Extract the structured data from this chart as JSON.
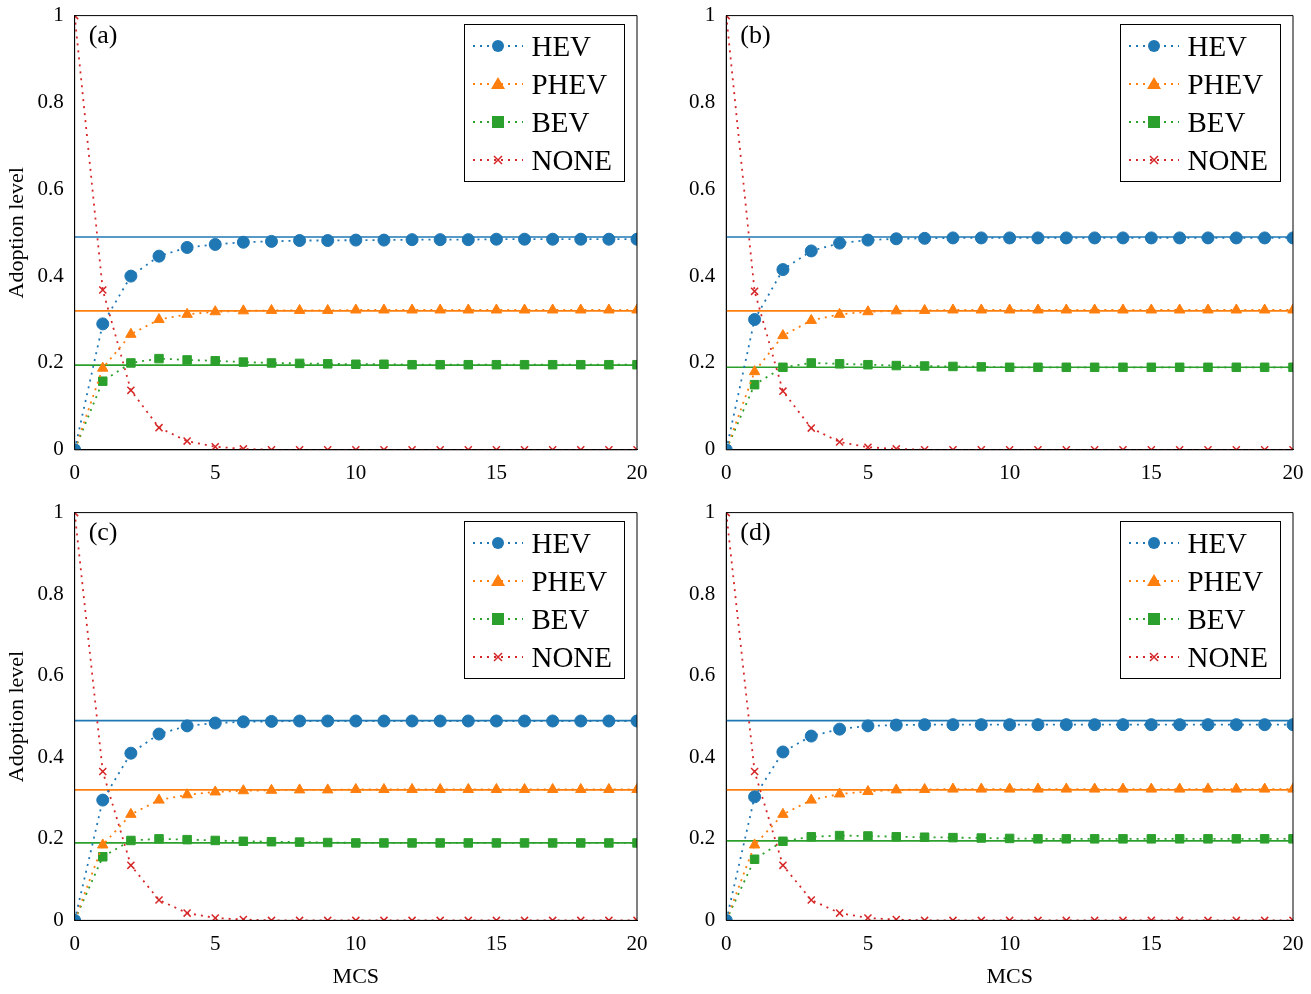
{
  "chart_data": [
    {
      "type": "line",
      "annotations": [
        "(a)"
      ],
      "ylabel": "Adoption level",
      "x": [
        0,
        1,
        2,
        3,
        4,
        5,
        6,
        7,
        8,
        9,
        10,
        11,
        12,
        13,
        14,
        15,
        16,
        17,
        18,
        19,
        20
      ],
      "xlim": [
        0,
        20
      ],
      "xticks": [
        0,
        5,
        10,
        15,
        20
      ],
      "ylim": [
        0,
        1
      ],
      "yticks": [
        0,
        0.2,
        0.4,
        0.6,
        0.8,
        1
      ],
      "legend": "top right",
      "line_style": "dotted",
      "series": [
        {
          "name": "HEV",
          "color": "#1f77b4",
          "marker": "circle",
          "values": [
            0,
            0.29,
            0.4,
            0.446,
            0.466,
            0.473,
            0.478,
            0.48,
            0.482,
            0.482,
            0.483,
            0.483,
            0.484,
            0.484,
            0.484,
            0.485,
            0.485,
            0.485,
            0.485,
            0.485,
            0.485
          ]
        },
        {
          "name": "PHEV",
          "color": "#ff7f0e",
          "marker": "triangle",
          "values": [
            0,
            0.188,
            0.266,
            0.3,
            0.312,
            0.318,
            0.32,
            0.321,
            0.321,
            0.321,
            0.322,
            0.322,
            0.322,
            0.322,
            0.322,
            0.322,
            0.322,
            0.322,
            0.322,
            0.322,
            0.322
          ]
        },
        {
          "name": "BEV",
          "color": "#2ca02c",
          "marker": "square",
          "values": [
            0,
            0.158,
            0.2,
            0.21,
            0.207,
            0.205,
            0.202,
            0.2,
            0.199,
            0.198,
            0.197,
            0.197,
            0.196,
            0.196,
            0.196,
            0.196,
            0.196,
            0.196,
            0.196,
            0.196,
            0.196
          ]
        },
        {
          "name": "NONE",
          "color": "#d62728",
          "marker": "cross",
          "values": [
            1,
            0.368,
            0.137,
            0.051,
            0.02,
            0.007,
            0.002,
            0,
            0,
            0,
            0,
            0,
            0,
            0,
            0,
            0,
            0,
            0,
            0,
            0,
            0
          ]
        }
      ],
      "ref_lines": [
        {
          "axis": "y",
          "value": 0.49,
          "color": "#1f77b4",
          "line_style": "solid"
        },
        {
          "axis": "y",
          "value": 0.32,
          "color": "#ff7f0e",
          "line_style": "solid"
        },
        {
          "axis": "y",
          "value": 0.195,
          "color": "#2ca02c",
          "line_style": "solid"
        }
      ]
    },
    {
      "type": "line",
      "annotations": [
        "(b)"
      ],
      "x": [
        0,
        1,
        2,
        3,
        4,
        5,
        6,
        7,
        8,
        9,
        10,
        11,
        12,
        13,
        14,
        15,
        16,
        17,
        18,
        19,
        20
      ],
      "xlim": [
        0,
        20
      ],
      "xticks": [
        0,
        5,
        10,
        15,
        20
      ],
      "ylim": [
        0,
        1
      ],
      "yticks": [
        0,
        0.2,
        0.4,
        0.6,
        0.8,
        1
      ],
      "legend": "top right",
      "line_style": "dotted",
      "series": [
        {
          "name": "HEV",
          "color": "#1f77b4",
          "marker": "circle",
          "values": [
            0,
            0.3,
            0.415,
            0.458,
            0.476,
            0.483,
            0.486,
            0.487,
            0.488,
            0.488,
            0.488,
            0.488,
            0.488,
            0.488,
            0.488,
            0.488,
            0.488,
            0.488,
            0.488,
            0.488,
            0.488
          ]
        },
        {
          "name": "PHEV",
          "color": "#ff7f0e",
          "marker": "triangle",
          "values": [
            0,
            0.18,
            0.263,
            0.298,
            0.312,
            0.318,
            0.32,
            0.321,
            0.322,
            0.322,
            0.322,
            0.322,
            0.322,
            0.322,
            0.322,
            0.322,
            0.322,
            0.322,
            0.322,
            0.322,
            0.322
          ]
        },
        {
          "name": "BEV",
          "color": "#2ca02c",
          "marker": "square",
          "values": [
            0,
            0.15,
            0.19,
            0.2,
            0.198,
            0.196,
            0.194,
            0.193,
            0.192,
            0.191,
            0.19,
            0.19,
            0.19,
            0.19,
            0.19,
            0.19,
            0.19,
            0.19,
            0.19,
            0.19,
            0.19
          ]
        },
        {
          "name": "NONE",
          "color": "#d62728",
          "marker": "cross",
          "values": [
            1,
            0.365,
            0.135,
            0.05,
            0.018,
            0.006,
            0.002,
            0,
            0,
            0,
            0,
            0,
            0,
            0,
            0,
            0,
            0,
            0,
            0,
            0,
            0
          ]
        }
      ],
      "ref_lines": [
        {
          "axis": "y",
          "value": 0.49,
          "color": "#1f77b4",
          "line_style": "solid"
        },
        {
          "axis": "y",
          "value": 0.32,
          "color": "#ff7f0e",
          "line_style": "solid"
        },
        {
          "axis": "y",
          "value": 0.19,
          "color": "#2ca02c",
          "line_style": "solid"
        }
      ]
    },
    {
      "type": "line",
      "annotations": [
        "(c)"
      ],
      "ylabel": "Adoption level",
      "xlabel": "MCS",
      "x": [
        0,
        1,
        2,
        3,
        4,
        5,
        6,
        7,
        8,
        9,
        10,
        11,
        12,
        13,
        14,
        15,
        16,
        17,
        18,
        19,
        20
      ],
      "xlim": [
        0,
        20
      ],
      "xticks": [
        0,
        5,
        10,
        15,
        20
      ],
      "ylim": [
        0,
        1
      ],
      "yticks": [
        0,
        0.2,
        0.4,
        0.6,
        0.8,
        1
      ],
      "legend": "top right",
      "line_style": "dotted",
      "series": [
        {
          "name": "HEV",
          "color": "#1f77b4",
          "marker": "circle",
          "values": [
            0,
            0.295,
            0.41,
            0.457,
            0.477,
            0.484,
            0.487,
            0.488,
            0.489,
            0.489,
            0.489,
            0.489,
            0.489,
            0.489,
            0.489,
            0.489,
            0.489,
            0.489,
            0.489,
            0.489,
            0.489
          ]
        },
        {
          "name": "PHEV",
          "color": "#ff7f0e",
          "marker": "triangle",
          "values": [
            0,
            0.185,
            0.26,
            0.295,
            0.308,
            0.315,
            0.318,
            0.319,
            0.32,
            0.32,
            0.321,
            0.321,
            0.321,
            0.321,
            0.321,
            0.321,
            0.321,
            0.321,
            0.321,
            0.321,
            0.321
          ]
        },
        {
          "name": "BEV",
          "color": "#2ca02c",
          "marker": "square",
          "values": [
            0,
            0.156,
            0.196,
            0.2,
            0.198,
            0.196,
            0.194,
            0.193,
            0.192,
            0.191,
            0.19,
            0.19,
            0.19,
            0.19,
            0.19,
            0.19,
            0.19,
            0.19,
            0.19,
            0.19,
            0.19
          ]
        },
        {
          "name": "NONE",
          "color": "#d62728",
          "marker": "cross",
          "values": [
            1,
            0.365,
            0.135,
            0.05,
            0.018,
            0.006,
            0.002,
            0,
            0,
            0,
            0,
            0,
            0,
            0,
            0,
            0,
            0,
            0,
            0,
            0,
            0
          ]
        }
      ],
      "ref_lines": [
        {
          "axis": "y",
          "value": 0.49,
          "color": "#1f77b4",
          "line_style": "solid"
        },
        {
          "axis": "y",
          "value": 0.32,
          "color": "#ff7f0e",
          "line_style": "solid"
        },
        {
          "axis": "y",
          "value": 0.19,
          "color": "#2ca02c",
          "line_style": "solid"
        }
      ]
    },
    {
      "type": "line",
      "annotations": [
        "(d)"
      ],
      "xlabel": "MCS",
      "x": [
        0,
        1,
        2,
        3,
        4,
        5,
        6,
        7,
        8,
        9,
        10,
        11,
        12,
        13,
        14,
        15,
        16,
        17,
        18,
        19,
        20
      ],
      "xlim": [
        0,
        20
      ],
      "xticks": [
        0,
        5,
        10,
        15,
        20
      ],
      "ylim": [
        0,
        1
      ],
      "yticks": [
        0,
        0.2,
        0.4,
        0.6,
        0.8,
        1
      ],
      "legend": "top right",
      "line_style": "dotted",
      "series": [
        {
          "name": "HEV",
          "color": "#1f77b4",
          "marker": "circle",
          "values": [
            0,
            0.303,
            0.413,
            0.452,
            0.469,
            0.477,
            0.479,
            0.48,
            0.48,
            0.48,
            0.48,
            0.48,
            0.48,
            0.48,
            0.48,
            0.48,
            0.48,
            0.48,
            0.48,
            0.48,
            0.48
          ]
        },
        {
          "name": "PHEV",
          "color": "#ff7f0e",
          "marker": "triangle",
          "values": [
            0,
            0.185,
            0.26,
            0.295,
            0.31,
            0.316,
            0.32,
            0.321,
            0.322,
            0.322,
            0.322,
            0.322,
            0.322,
            0.322,
            0.322,
            0.322,
            0.322,
            0.322,
            0.322,
            0.322,
            0.322
          ]
        },
        {
          "name": "BEV",
          "color": "#2ca02c",
          "marker": "square",
          "values": [
            0,
            0.15,
            0.194,
            0.205,
            0.208,
            0.207,
            0.205,
            0.204,
            0.203,
            0.202,
            0.201,
            0.2,
            0.2,
            0.2,
            0.2,
            0.2,
            0.2,
            0.2,
            0.2,
            0.2,
            0.2
          ]
        },
        {
          "name": "NONE",
          "color": "#d62728",
          "marker": "cross",
          "values": [
            1,
            0.365,
            0.135,
            0.05,
            0.018,
            0.006,
            0.002,
            0,
            0,
            0,
            0,
            0,
            0,
            0,
            0,
            0,
            0,
            0,
            0,
            0,
            0
          ]
        }
      ],
      "ref_lines": [
        {
          "axis": "y",
          "value": 0.49,
          "color": "#1f77b4",
          "line_style": "solid"
        },
        {
          "axis": "y",
          "value": 0.32,
          "color": "#ff7f0e",
          "line_style": "solid"
        },
        {
          "axis": "y",
          "value": 0.195,
          "color": "#2ca02c",
          "line_style": "solid"
        }
      ]
    }
  ]
}
